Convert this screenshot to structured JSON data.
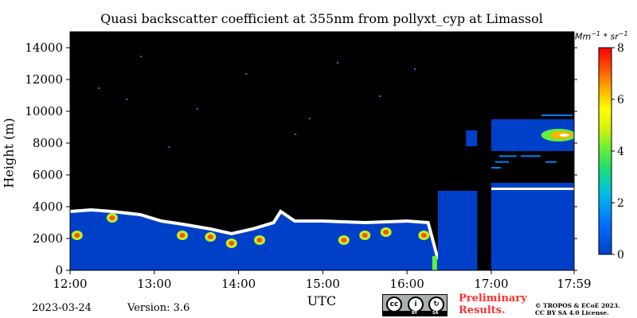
{
  "chart_data": {
    "type": "heatmap",
    "title": "Quasi backscatter coefficient at 355nm from pollyxt_cyp at Limassol",
    "xlabel": "UTC",
    "ylabel": "Height (m)",
    "x_range": [
      "12:00",
      "17:59"
    ],
    "ylim": [
      0,
      15000
    ],
    "x_ticks": [
      "12:00",
      "13:00",
      "14:00",
      "15:00",
      "16:00",
      "17:00",
      "17:59"
    ],
    "y_ticks": [
      0,
      2000,
      4000,
      6000,
      8000,
      10000,
      12000,
      14000
    ],
    "colorbar": {
      "unit": "Mm^-1 * sr^-1",
      "unit_base": "Mm",
      "unit_exp1": "−1",
      "unit_mid": " * sr",
      "unit_exp2": "−1",
      "range": [
        0,
        8
      ],
      "ticks": [
        0,
        2,
        4,
        6,
        8
      ],
      "colors": [
        "#0040c8",
        "#0080ff",
        "#00d0e0",
        "#20e080",
        "#60f040",
        "#c0f020",
        "#ffff00",
        "#ffb000",
        "#ff5000",
        "#ff0000"
      ]
    },
    "boundary_layer_top_m": [
      {
        "t": "12:00",
        "h": 3700
      },
      {
        "t": "12:15",
        "h": 3800
      },
      {
        "t": "12:30",
        "h": 3700
      },
      {
        "t": "12:50",
        "h": 3500
      },
      {
        "t": "13:05",
        "h": 3100
      },
      {
        "t": "13:20",
        "h": 2900
      },
      {
        "t": "13:40",
        "h": 2600
      },
      {
        "t": "13:55",
        "h": 2300
      },
      {
        "t": "14:10",
        "h": 2600
      },
      {
        "t": "14:25",
        "h": 3000
      },
      {
        "t": "14:30",
        "h": 3700
      },
      {
        "t": "14:40",
        "h": 3100
      },
      {
        "t": "15:00",
        "h": 3100
      },
      {
        "t": "15:30",
        "h": 3000
      },
      {
        "t": "16:00",
        "h": 3100
      },
      {
        "t": "16:15",
        "h": 3000
      },
      {
        "t": "16:22",
        "h": 700
      }
    ],
    "aerosol_layers": [
      {
        "start": "17:00",
        "end": "17:59",
        "bottom_m": 7500,
        "top_m": 9500,
        "max_value": 8
      },
      {
        "start": "17:00",
        "end": "17:59",
        "bottom_m": 4800,
        "top_m": 5500,
        "max_value": 8
      }
    ],
    "data_gap": {
      "start": "16:50",
      "end": "17:00"
    }
  },
  "footer": {
    "date": "2023-03-24",
    "version": "Version: 3.6",
    "license_badge": "cc-by-sa-icon",
    "cc_by": "BY",
    "cc_sa": "SA",
    "preliminary_1": "Preliminary",
    "preliminary_2": "Results.",
    "copyright_1": "© TROPOS & ECoE 2023.",
    "copyright_2": "CC BY SA 4.0 License.",
    "preliminary_color": "#ff3030"
  }
}
